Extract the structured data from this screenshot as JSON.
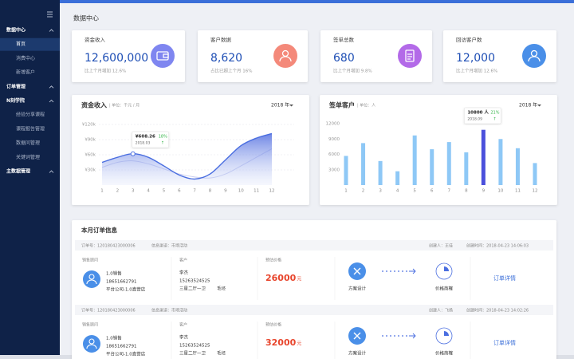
{
  "page_title": "数据中心",
  "sidebar": {
    "groups": [
      {
        "title": "数据中心",
        "items": [
          "首页",
          "消费中心",
          "新增客户"
        ]
      },
      {
        "title": "订单管理",
        "items": []
      },
      {
        "title": "N刻学院",
        "items": [
          "经验分享课程",
          "课程报告管理",
          "数据问管理",
          "关键词管理"
        ]
      },
      {
        "title": "主数据管理",
        "items": []
      }
    ]
  },
  "stats": [
    {
      "label": "资金收入",
      "value": "12,600,000",
      "note": "比上个月增加 12.6%",
      "color": "#7f86f0"
    },
    {
      "label": "客户数据",
      "value": "8,620",
      "note": "占比已超上个月 16%",
      "color": "#f4897a"
    },
    {
      "label": "签单总数",
      "value": "680",
      "note": "比上个月增加 9.8%",
      "color": "#b36ae8"
    },
    {
      "label": "回访客户数",
      "value": "12,000",
      "note": "比上个月增加 12.6%",
      "color": "#4a8fe8"
    }
  ],
  "chart_data": [
    {
      "type": "area",
      "title": "资金收入",
      "subtitle": "| 单位：千元 / 月",
      "selector": "2018 年",
      "categories": [
        "1",
        "2",
        "3",
        "4",
        "5",
        "6",
        "7",
        "8",
        "9",
        "10",
        "11",
        "12"
      ],
      "series": [
        {
          "color": "#4a6ee0",
          "values": [
            45000,
            55000,
            62000,
            55000,
            38000,
            20000,
            12000,
            22000,
            50000,
            78000,
            93000,
            102000
          ]
        },
        {
          "color": "#c6cbef",
          "values": [
            35000,
            45000,
            48000,
            42000,
            32000,
            22000,
            16000,
            14000,
            22000,
            38000,
            55000,
            72000
          ]
        }
      ],
      "ylim": [
        0,
        120000
      ],
      "yticks": [
        {
          "value": 30000,
          "label": "¥30k"
        },
        {
          "value": 60000,
          "label": "¥60k"
        },
        {
          "value": 90000,
          "label": "¥90k"
        },
        {
          "value": 120000,
          "label": "¥120k"
        }
      ],
      "grid": true,
      "tooltip": {
        "label": "¥608.26",
        "change": "18%",
        "date": "2018.03",
        "trend": "↑"
      }
    },
    {
      "type": "bar",
      "title": "签单客户",
      "subtitle": "| 单位：人",
      "selector": "2018 年",
      "categories": [
        "1",
        "2",
        "3",
        "4",
        "5",
        "6",
        "7",
        "8",
        "9",
        "10",
        "11",
        "12"
      ],
      "values": [
        5700,
        8200,
        4700,
        2700,
        9700,
        7000,
        8400,
        6400,
        10800,
        9000,
        7200,
        4300
      ],
      "colors": [
        "#8ec8f6",
        "#8ec8f6",
        "#8ec8f6",
        "#8ec8f6",
        "#8ec8f6",
        "#8ec8f6",
        "#8ec8f6",
        "#8ec8f6",
        "#4b50dc",
        "#8ec8f6",
        "#8ec8f6",
        "#8ec8f6"
      ],
      "ylim": [
        0,
        12000
      ],
      "yticks": [
        3000,
        6000,
        9000,
        12000
      ],
      "grid": false,
      "tooltip": {
        "label": "10800 人",
        "change": "21%",
        "date": "2018.09",
        "trend": "↑"
      }
    }
  ],
  "orders": {
    "title": "本月订单信息",
    "items": [
      {
        "id": "订单号：120180423000006",
        "channel": "信息渠道：市场活动",
        "creator": "创建人：王佳",
        "created": "创建时间：2018-04-23   14:06:03",
        "advisor_heading": "销售顾问",
        "advisor": [
          "1.0销售",
          "18651662791",
          "平台公司-1.0直营店"
        ],
        "customer_heading": "客户",
        "customer": [
          "李杰",
          "15263524525",
          "三星二厅一卫",
          "毛坯"
        ],
        "price_heading": "预估价格",
        "price": "26000",
        "price_unit": "元",
        "step1": "方案设计",
        "step2": "价格商榷",
        "link": "订单详情"
      },
      {
        "id": "订单号：120180423000006",
        "channel": "信息渠道：市场活动",
        "creator": "创建人：飞扬",
        "created": "创建时间：2018-04-23   14:02:26",
        "advisor_heading": "销售顾问",
        "advisor": [
          "1.0销售",
          "18651662791",
          "平台公司-1.0直营店"
        ],
        "customer_heading": "客户",
        "customer": [
          "李杰",
          "15263524525",
          "三星二厅一卫",
          "毛坯"
        ],
        "price_heading": "预估价格",
        "price": "32000",
        "price_unit": "元",
        "step1": "方案设计",
        "step2": "价格商榷",
        "link": "订单详情"
      }
    ]
  }
}
